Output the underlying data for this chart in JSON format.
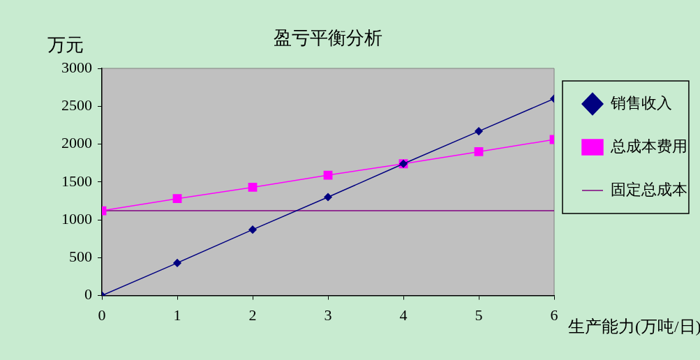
{
  "chart_data": {
    "type": "line",
    "title": "盈亏平衡分析",
    "xlabel": "生产能力(万吨/日)",
    "ylabel": "万元",
    "x": [
      0,
      1,
      2,
      3,
      4,
      5,
      6
    ],
    "series": [
      {
        "name": "销售收入",
        "color": "#000080",
        "marker": "diamond",
        "values": [
          0,
          430,
          870,
          1300,
          1740,
          2170,
          2600
        ]
      },
      {
        "name": "总成本费用",
        "color": "#ff00ff",
        "marker": "square",
        "values": [
          1120,
          1280,
          1430,
          1590,
          1740,
          1900,
          2060
        ]
      },
      {
        "name": "固定总成本",
        "color": "#800080",
        "marker": "none",
        "values": [
          1120,
          1120,
          1120,
          1120,
          1120,
          1120,
          1120
        ]
      }
    ],
    "xlim": [
      0,
      6
    ],
    "xticks": [
      0,
      1,
      2,
      3,
      4,
      5,
      6
    ],
    "ylim": [
      0,
      3000
    ],
    "yticks": [
      0,
      500,
      1000,
      1500,
      2000,
      2500,
      3000
    ],
    "grid": false,
    "legend": "top right"
  }
}
